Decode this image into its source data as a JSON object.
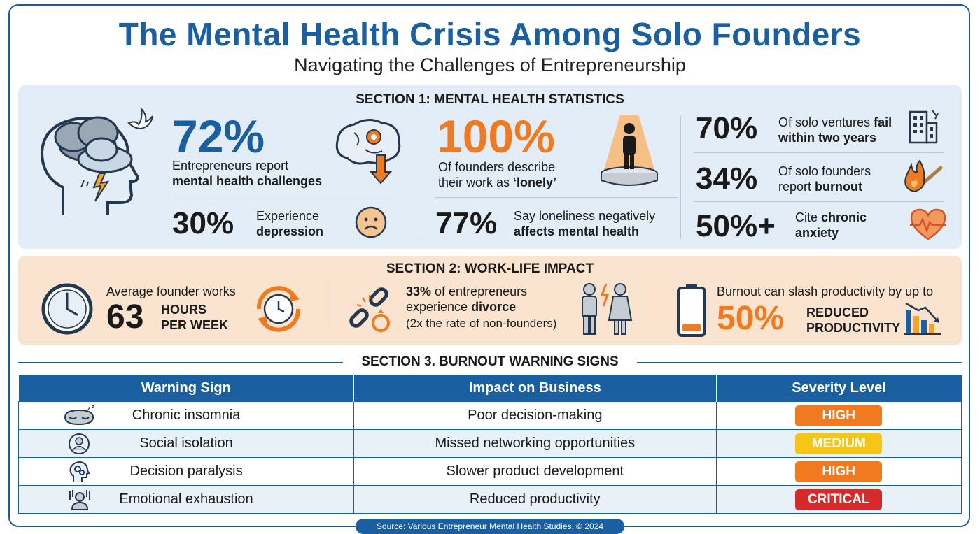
{
  "header": {
    "title": "The Mental Health Crisis Among Solo Founders",
    "subtitle": "Navigating the Challenges of Entrepreneurship"
  },
  "section1": {
    "heading": "SECTION 1: MENTAL HEALTH STATISTICS",
    "stat_72": {
      "value": "72%",
      "line1": "Entrepreneurs report",
      "line2": "mental health challenges"
    },
    "stat_30": {
      "value": "30%",
      "line1": "Experience",
      "line2": "depression"
    },
    "stat_100": {
      "value": "100%",
      "line1": "Of founders describe",
      "line2a": "their work as ",
      "line2b": "‘lonely’"
    },
    "stat_77": {
      "value": "77%",
      "line1": "Say loneliness negatively",
      "line2": "affects mental health"
    },
    "stat_70": {
      "value": "70%",
      "line1a": "Of solo ventures ",
      "line1b": "fail",
      "line2": "within two years"
    },
    "stat_34": {
      "value": "34%",
      "line1": "Of solo founders",
      "line2a": "report ",
      "line2b": "burnout"
    },
    "stat_50": {
      "value": "50%+",
      "line1a": "Cite ",
      "line1b": "chronic",
      "line2": "anxiety"
    }
  },
  "section2": {
    "heading": "SECTION 2: WORK-LIFE IMPACT",
    "hours": {
      "intro": "Average founder works",
      "value": "63",
      "unit1": "HOURS",
      "unit2": "PER WEEK"
    },
    "divorce": {
      "value": "33%",
      "line1": " of entrepreneurs",
      "line2a": "experience ",
      "line2b": "divorce",
      "line3": "(2x the rate of non-founders)"
    },
    "productivity": {
      "intro": "Burnout can slash productivity by up to",
      "value": "50%",
      "unit1": "REDUCED",
      "unit2": "PRODUCTIVITY"
    }
  },
  "section3": {
    "heading": "SECTION 3. BURNOUT WARNING SIGNS",
    "columns": [
      "Warning Sign",
      "Impact on Business",
      "Severity Level"
    ],
    "rows": [
      {
        "sign": "Chronic insomnia",
        "impact": "Poor decision-making",
        "severity": "HIGH",
        "color": "#f07a1f",
        "icon": "sleep-mask-icon"
      },
      {
        "sign": "Social isolation",
        "impact": "Missed networking opportunities",
        "severity": "MEDIUM",
        "color": "#f5c518",
        "icon": "person-circle-icon"
      },
      {
        "sign": "Decision paralysis",
        "impact": "Slower product development",
        "severity": "HIGH",
        "color": "#f07a1f",
        "icon": "head-gears-icon"
      },
      {
        "sign": "Emotional exhaustion",
        "impact": "Reduced productivity",
        "severity": "CRITICAL",
        "color": "#d42a2a",
        "icon": "exhausted-person-icon"
      }
    ]
  },
  "footer": {
    "source": "Source: Various Entrepreneur Mental Health Studies. © 2024"
  },
  "colors": {
    "primary": "#1a5fa0",
    "accent": "#f07a1f",
    "medium": "#f5c518",
    "critical": "#d42a2a"
  }
}
